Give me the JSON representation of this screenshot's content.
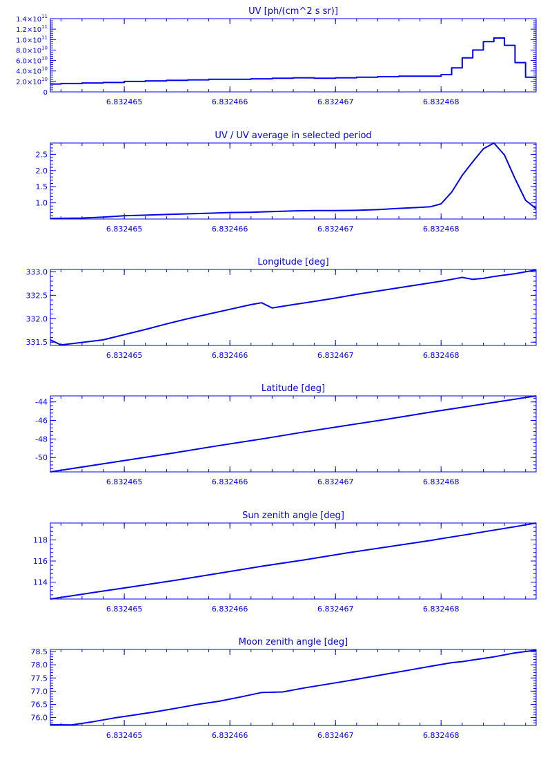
{
  "style": {
    "color": "#0000ee",
    "background": "#ffffff"
  },
  "chart_data": [
    {
      "type": "line",
      "step": true,
      "title": "UV [ph/(cm^2 s sr)]",
      "xlim": [
        6.8324643,
        6.8324689
      ],
      "ylim": [
        0,
        140000000000.0
      ],
      "x_ticks": [
        6.832465,
        6.832466,
        6.832467,
        6.832468
      ],
      "x_tick_labels": [
        "6.832465",
        "6.832466",
        "6.832467",
        "6.832468"
      ],
      "y_ticks": [
        0,
        20000000000.0,
        40000000000.0,
        60000000000.0,
        80000000000.0,
        100000000000.0,
        120000000000.0,
        140000000000.0
      ],
      "y_tick_labels": [
        {
          "mantissa": "0",
          "exponent": ""
        },
        {
          "mantissa": "2.0×10",
          "exponent": "10"
        },
        {
          "mantissa": "4.0×10",
          "exponent": "10"
        },
        {
          "mantissa": "6.0×10",
          "exponent": "10"
        },
        {
          "mantissa": "8.0×10",
          "exponent": "10"
        },
        {
          "mantissa": "1.0×10",
          "exponent": "11"
        },
        {
          "mantissa": "1.2×10",
          "exponent": "11"
        },
        {
          "mantissa": "1.4×10",
          "exponent": "11"
        }
      ],
      "x": [
        6.8324643,
        6.8324644,
        6.8324646,
        6.8324648,
        6.832465,
        6.8324652,
        6.8324654,
        6.8324656,
        6.8324658,
        6.832466,
        6.8324662,
        6.8324664,
        6.8324666,
        6.8324668,
        6.832467,
        6.8324672,
        6.8324674,
        6.8324676,
        6.8324678,
        6.832468,
        6.8324681,
        6.8324682,
        6.8324683,
        6.8324684,
        6.8324685,
        6.8324686,
        6.8324687,
        6.8324688,
        6.8324689
      ],
      "y": [
        15000000000.0,
        16000000000.0,
        17000000000.0,
        18000000000.0,
        20000000000.0,
        21000000000.0,
        22000000000.0,
        23000000000.0,
        24000000000.0,
        24000000000.0,
        25000000000.0,
        26000000000.0,
        27000000000.0,
        26000000000.0,
        27000000000.0,
        28000000000.0,
        29000000000.0,
        30000000000.0,
        30000000000.0,
        33000000000.0,
        46000000000.0,
        65000000000.0,
        80000000000.0,
        96000000000.0,
        103000000000.0,
        89000000000.0,
        56000000000.0,
        28000000000.0,
        28000000000.0
      ]
    },
    {
      "type": "line",
      "title": "UV / UV average in selected period",
      "xlim": [
        6.8324643,
        6.8324689
      ],
      "ylim": [
        0.5,
        2.85
      ],
      "x_ticks": [
        6.832465,
        6.832466,
        6.832467,
        6.832468
      ],
      "x_tick_labels": [
        "6.832465",
        "6.832466",
        "6.832467",
        "6.832468"
      ],
      "y_ticks": [
        1.0,
        1.5,
        2.0,
        2.5
      ],
      "y_tick_labels": [
        "1.0",
        "1.5",
        "2.0",
        "2.5"
      ],
      "x": [
        6.8324643,
        6.8324646,
        6.8324648,
        6.832465,
        6.8324652,
        6.8324654,
        6.8324656,
        6.8324658,
        6.832466,
        6.8324662,
        6.8324664,
        6.8324666,
        6.8324668,
        6.832467,
        6.8324672,
        6.8324674,
        6.8324676,
        6.8324678,
        6.8324679,
        6.832468,
        6.8324681,
        6.8324682,
        6.8324683,
        6.8324684,
        6.8324685,
        6.8324686,
        6.8324687,
        6.8324688,
        6.8324689
      ],
      "y": [
        0.52,
        0.53,
        0.56,
        0.6,
        0.62,
        0.64,
        0.66,
        0.68,
        0.7,
        0.71,
        0.73,
        0.75,
        0.76,
        0.76,
        0.77,
        0.79,
        0.83,
        0.86,
        0.88,
        0.97,
        1.33,
        1.85,
        2.27,
        2.67,
        2.85,
        2.48,
        1.75,
        1.08,
        0.82
      ]
    },
    {
      "type": "line",
      "title": "Longitude [deg]",
      "xlim": [
        6.8324643,
        6.8324689
      ],
      "ylim": [
        331.43,
        333.05
      ],
      "x_ticks": [
        6.832465,
        6.832466,
        6.832467,
        6.832468
      ],
      "x_tick_labels": [
        "6.832465",
        "6.832466",
        "6.832467",
        "6.832468"
      ],
      "y_ticks": [
        331.5,
        332.0,
        332.5,
        333.0
      ],
      "y_tick_labels": [
        "331.5",
        "332.0",
        "332.5",
        "333.0"
      ],
      "x": [
        6.8324643,
        6.8324644,
        6.8324648,
        6.832465,
        6.8324652,
        6.8324654,
        6.8324656,
        6.8324658,
        6.832466,
        6.8324662,
        6.8324663,
        6.8324664,
        6.8324666,
        6.8324668,
        6.832467,
        6.8324672,
        6.8324674,
        6.8324676,
        6.8324678,
        6.832468,
        6.8324681,
        6.8324682,
        6.8324683,
        6.8324684,
        6.8324685,
        6.8324686,
        6.8324687,
        6.8324688,
        6.8324689
      ],
      "y": [
        331.55,
        331.44,
        331.55,
        331.66,
        331.77,
        331.89,
        332.0,
        332.1,
        332.2,
        332.3,
        332.34,
        332.23,
        332.3,
        332.37,
        332.44,
        332.52,
        332.59,
        332.66,
        332.73,
        332.8,
        332.84,
        332.88,
        332.84,
        332.86,
        332.9,
        332.93,
        332.96,
        333.0,
        333.04
      ]
    },
    {
      "type": "line",
      "title": "Latitude [deg]",
      "xlim": [
        6.8324643,
        6.8324689
      ],
      "ylim": [
        -51.55,
        -43.35
      ],
      "x_ticks": [
        6.832465,
        6.832466,
        6.832467,
        6.832468
      ],
      "x_tick_labels": [
        "6.832465",
        "6.832466",
        "6.832467",
        "6.832468"
      ],
      "y_ticks": [
        -50,
        -48,
        -46,
        -44
      ],
      "y_tick_labels": [
        "-50",
        "-48",
        "-46",
        "-44"
      ],
      "x": [
        6.8324643,
        6.8324647,
        6.8324651,
        6.8324655,
        6.8324659,
        6.8324663,
        6.8324667,
        6.8324671,
        6.8324675,
        6.8324679,
        6.8324683,
        6.8324687,
        6.8324689
      ],
      "y": [
        -51.55,
        -50.85,
        -50.15,
        -49.45,
        -48.7,
        -48.0,
        -47.25,
        -46.55,
        -45.85,
        -45.1,
        -44.4,
        -43.7,
        -43.35
      ]
    },
    {
      "type": "line",
      "title": "Sun zenith angle [deg]",
      "xlim": [
        6.8324643,
        6.8324689
      ],
      "ylim": [
        112.4,
        119.6
      ],
      "x_ticks": [
        6.832465,
        6.832466,
        6.832467,
        6.832468
      ],
      "x_tick_labels": [
        "6.832465",
        "6.832466",
        "6.832467",
        "6.832468"
      ],
      "y_ticks": [
        114,
        116,
        118
      ],
      "y_tick_labels": [
        "114",
        "116",
        "118"
      ],
      "x": [
        6.8324643,
        6.8324647,
        6.8324651,
        6.8324655,
        6.8324659,
        6.8324663,
        6.8324667,
        6.8324671,
        6.8324675,
        6.8324679,
        6.8324683,
        6.8324687,
        6.8324689
      ],
      "y": [
        112.4,
        113.0,
        113.6,
        114.2,
        114.85,
        115.5,
        116.1,
        116.75,
        117.35,
        117.95,
        118.6,
        119.25,
        119.6
      ]
    },
    {
      "type": "line",
      "title": "Moon zenith angle [deg]",
      "xlim": [
        6.8324643,
        6.8324689
      ],
      "ylim": [
        75.7,
        78.58
      ],
      "x_ticks": [
        6.832465,
        6.832466,
        6.832467,
        6.832468
      ],
      "x_tick_labels": [
        "6.832465",
        "6.832466",
        "6.832467",
        "6.832468"
      ],
      "y_ticks": [
        76.0,
        76.5,
        77.0,
        77.5,
        78.0,
        78.5
      ],
      "y_tick_labels": [
        "76.0",
        "76.5",
        "77.0",
        "77.5",
        "78.0",
        "78.5"
      ],
      "x": [
        6.8324643,
        6.8324645,
        6.8324647,
        6.8324649,
        6.8324651,
        6.8324653,
        6.8324655,
        6.8324657,
        6.8324659,
        6.8324661,
        6.8324663,
        6.8324665,
        6.8324667,
        6.8324669,
        6.8324671,
        6.8324673,
        6.8324675,
        6.8324677,
        6.8324679,
        6.8324681,
        6.8324682,
        6.8324683,
        6.8324685,
        6.8324687,
        6.8324689
      ],
      "y": [
        75.73,
        75.72,
        75.84,
        75.98,
        76.1,
        76.22,
        76.36,
        76.5,
        76.62,
        76.78,
        76.95,
        76.97,
        77.12,
        77.25,
        77.38,
        77.52,
        77.66,
        77.8,
        77.94,
        78.08,
        78.12,
        78.18,
        78.3,
        78.45,
        78.55
      ]
    }
  ]
}
